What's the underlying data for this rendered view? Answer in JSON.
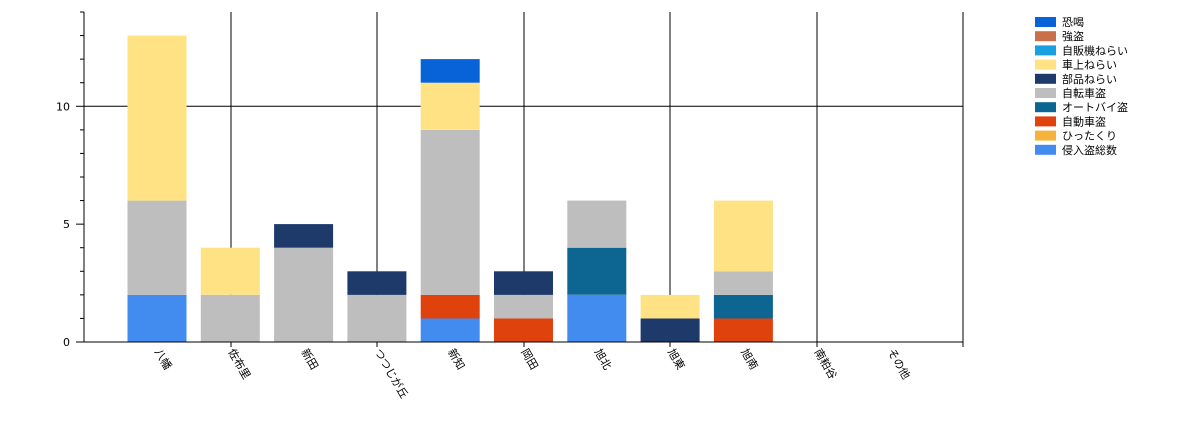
{
  "chart_data": {
    "type": "bar",
    "stacked": true,
    "categories": [
      "八幡",
      "佐布里",
      "新田",
      "つつじが丘",
      "新知",
      "岡田",
      "旭北",
      "旭東",
      "旭南",
      "南粕谷",
      "その他"
    ],
    "ylim": [
      0,
      14
    ],
    "yticks": [
      0,
      5,
      10
    ],
    "grid": true,
    "legend_position": "top-right",
    "series": [
      {
        "name": "恐喝",
        "color": "#0863d8",
        "values": [
          0,
          0,
          0,
          0,
          1,
          0,
          0,
          0,
          0,
          0,
          0
        ]
      },
      {
        "name": "強盗",
        "color": "#c9704b",
        "values": [
          0,
          0,
          0,
          0,
          0,
          0,
          0,
          0,
          0,
          0,
          0
        ]
      },
      {
        "name": "自販機ねらい",
        "color": "#1a9fe0",
        "values": [
          0,
          0,
          0,
          0,
          0,
          0,
          0,
          0,
          0,
          0,
          0
        ]
      },
      {
        "name": "車上ねらい",
        "color": "#fee283",
        "values": [
          7,
          2,
          0,
          0,
          2,
          0,
          0,
          1,
          3,
          0,
          0
        ]
      },
      {
        "name": "部品ねらい",
        "color": "#1d3a6b",
        "values": [
          0,
          0,
          1,
          1,
          0,
          1,
          0,
          1,
          0,
          0,
          0
        ]
      },
      {
        "name": "自転車盗",
        "color": "#bebebe",
        "values": [
          4,
          2,
          4,
          2,
          7,
          1,
          2,
          0,
          1,
          0,
          0
        ]
      },
      {
        "name": "オートバイ盗",
        "color": "#0d6592",
        "values": [
          0,
          0,
          0,
          0,
          0,
          0,
          2,
          0,
          1,
          0,
          0
        ]
      },
      {
        "name": "自動車盗",
        "color": "#e0420e",
        "values": [
          0,
          0,
          0,
          0,
          1,
          1,
          0,
          0,
          1,
          0,
          0
        ]
      },
      {
        "name": "ひったくり",
        "color": "#f6b33c",
        "values": [
          0,
          0,
          0,
          0,
          0,
          0,
          0,
          0,
          0,
          0,
          0
        ]
      },
      {
        "name": "侵入盗総数",
        "color": "#428cf0",
        "values": [
          2,
          0,
          0,
          0,
          1,
          0,
          2,
          0,
          0,
          0,
          0
        ]
      }
    ]
  }
}
